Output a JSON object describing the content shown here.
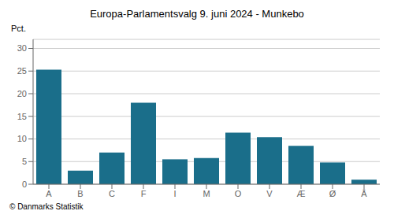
{
  "chart_data": {
    "type": "bar",
    "title": "Europa-Parlamentsvalg 9. juni 2024 - Munkebo",
    "ylabel": "Pct.",
    "annotations": [
      "© Danmarks Statistik"
    ],
    "categories": [
      "A",
      "B",
      "C",
      "F",
      "I",
      "M",
      "O",
      "V",
      "Æ",
      "Ø",
      "Å"
    ],
    "values": [
      25.3,
      3.0,
      7.0,
      18.0,
      5.5,
      5.8,
      11.4,
      10.4,
      8.5,
      4.8,
      1.0
    ],
    "color": "#1a6e8a",
    "ylim": [
      0,
      32
    ],
    "yticks": [
      0,
      5,
      10,
      15,
      20,
      25,
      30
    ],
    "grid": true
  }
}
